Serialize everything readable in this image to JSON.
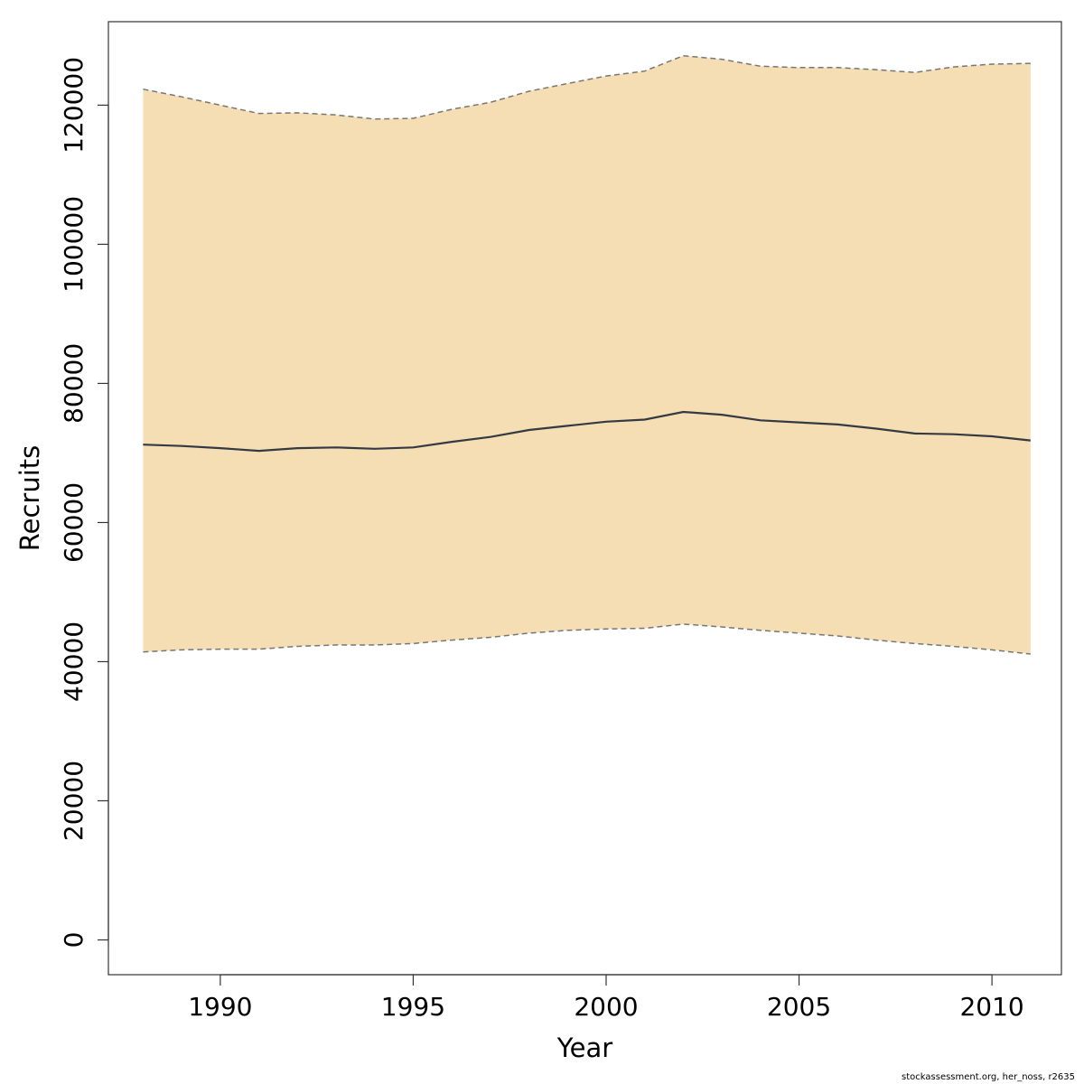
{
  "chart_data": {
    "type": "area",
    "xlabel": "Year",
    "ylabel": "Recruits",
    "xlim": [
      1987.1,
      2011.8
    ],
    "ylim": [
      -5000,
      132000
    ],
    "x_ticks": [
      1990,
      1995,
      2000,
      2005,
      2010
    ],
    "y_ticks": [
      0,
      20000,
      40000,
      60000,
      80000,
      100000,
      120000
    ],
    "x": [
      1988,
      1989,
      1990,
      1991,
      1992,
      1993,
      1994,
      1995,
      1996,
      1997,
      1998,
      1999,
      2000,
      2001,
      2002,
      2003,
      2004,
      2005,
      2006,
      2007,
      2008,
      2009,
      2010,
      2011
    ],
    "series": [
      {
        "role": "estimate",
        "values": [
          71200,
          71000,
          70700,
          70300,
          70700,
          70800,
          70600,
          70800,
          71600,
          72300,
          73300,
          73900,
          74500,
          74800,
          75900,
          75500,
          74700,
          74400,
          74100,
          73500,
          72800,
          72700,
          72400,
          71800
        ]
      },
      {
        "role": "upper",
        "values": [
          122300,
          121200,
          120000,
          118800,
          118900,
          118600,
          118000,
          118100,
          119400,
          120400,
          122000,
          123100,
          124200,
          124900,
          127100,
          126600,
          125600,
          125400,
          125400,
          125100,
          124700,
          125500,
          125900,
          126000
        ]
      },
      {
        "role": "lower",
        "values": [
          41400,
          41700,
          41800,
          41800,
          42200,
          42400,
          42400,
          42600,
          43100,
          43500,
          44100,
          44500,
          44700,
          44800,
          45400,
          45000,
          44500,
          44100,
          43700,
          43100,
          42600,
          42200,
          41700,
          41100
        ]
      }
    ],
    "colors": {
      "band": "#F5DEB3",
      "line": "#333a44",
      "bounds": "#777777"
    },
    "grid": false,
    "legend": "none"
  },
  "footer": {
    "credit": "stockassessment.org, her_noss, r2635"
  }
}
